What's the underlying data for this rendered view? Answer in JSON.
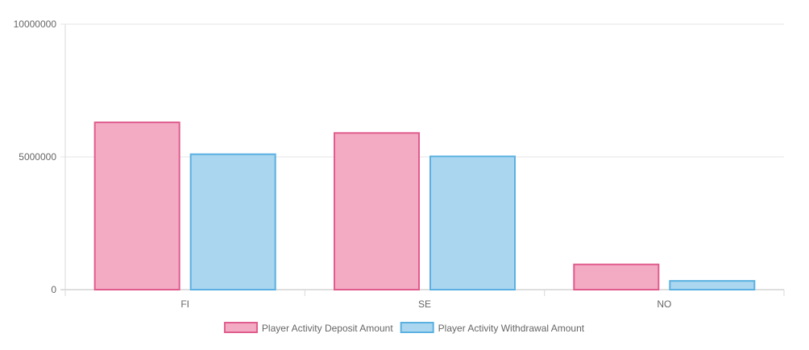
{
  "chart_data": {
    "type": "bar",
    "categories": [
      "FI",
      "SE",
      "NO"
    ],
    "series": [
      {
        "name": "Player Activity Deposit Amount",
        "values": [
          6300000,
          5900000,
          950000
        ],
        "fill": "#f3abc4",
        "stroke": "#e05c8c"
      },
      {
        "name": "Player Activity Withdrawal Amount",
        "values": [
          5100000,
          5020000,
          330000
        ],
        "fill": "#aad6f0",
        "stroke": "#5ab0e0"
      }
    ],
    "y_ticks": [
      "0",
      "5000000",
      "10000000"
    ],
    "ylim": [
      0,
      10000000
    ],
    "grid": true,
    "legend_position": "bottom"
  }
}
